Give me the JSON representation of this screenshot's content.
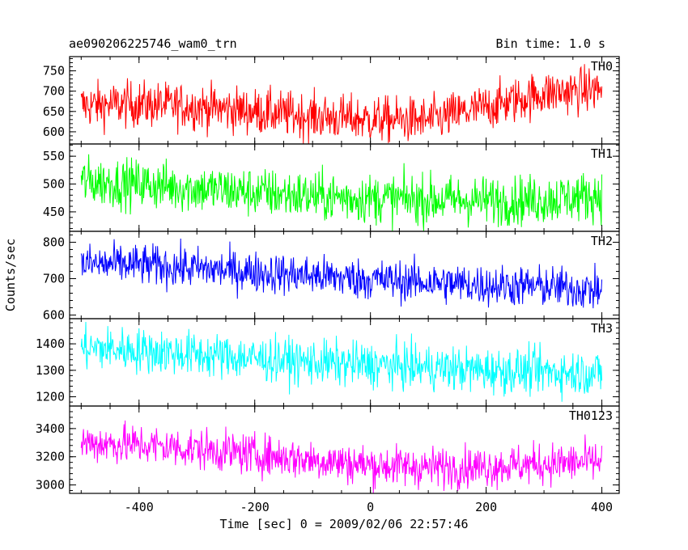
{
  "header": {
    "title": "ae090206225746_wam0_trn",
    "bin_time": "Bin time: 1.0 s"
  },
  "chart_data": {
    "type": "line",
    "title": "ae090206225746_wam0_trn",
    "xlabel": "Time [sec] 0 = 2009/02/06 22:57:46",
    "ylabel": "Counts/sec",
    "xlim": [
      -520,
      430
    ],
    "x_ticks": [
      -400,
      -200,
      0,
      200,
      400
    ],
    "x_range_data": [
      -500,
      400
    ],
    "bin_time_s": 1.0,
    "grid": false,
    "panels": [
      {
        "name": "TH0",
        "color": "#ff0000",
        "ylim": [
          570,
          785
        ],
        "y_ticks": [
          600,
          650,
          700,
          750
        ],
        "trend": [
          [
            -500,
            665
          ],
          [
            -400,
            668
          ],
          [
            -300,
            662
          ],
          [
            -200,
            650
          ],
          [
            -100,
            638
          ],
          [
            0,
            630
          ],
          [
            100,
            628
          ],
          [
            200,
            660
          ],
          [
            300,
            695
          ],
          [
            400,
            705
          ]
        ],
        "noise": 28
      },
      {
        "name": "TH1",
        "color": "#00ff00",
        "ylim": [
          415,
          572
        ],
        "y_ticks": [
          450,
          500,
          550
        ],
        "trend": [
          [
            -500,
            505
          ],
          [
            -400,
            500
          ],
          [
            -300,
            492
          ],
          [
            -200,
            485
          ],
          [
            -100,
            478
          ],
          [
            0,
            474
          ],
          [
            100,
            472
          ],
          [
            200,
            470
          ],
          [
            300,
            472
          ],
          [
            400,
            480
          ]
        ],
        "noise": 22
      },
      {
        "name": "TH2",
        "color": "#0000ff",
        "ylim": [
          590,
          830
        ],
        "y_ticks": [
          600,
          700,
          800
        ],
        "trend": [
          [
            -500,
            740
          ],
          [
            -400,
            738
          ],
          [
            -300,
            728
          ],
          [
            -200,
            718
          ],
          [
            -100,
            708
          ],
          [
            0,
            698
          ],
          [
            100,
            690
          ],
          [
            200,
            682
          ],
          [
            300,
            678
          ],
          [
            400,
            668
          ]
        ],
        "noise": 28
      },
      {
        "name": "TH3",
        "color": "#00ffff",
        "ylim": [
          1165,
          1495
        ],
        "y_ticks": [
          1200,
          1300,
          1400
        ],
        "trend": [
          [
            -500,
            1385
          ],
          [
            -400,
            1375
          ],
          [
            -300,
            1360
          ],
          [
            -200,
            1345
          ],
          [
            -100,
            1330
          ],
          [
            0,
            1320
          ],
          [
            100,
            1310
          ],
          [
            200,
            1300
          ],
          [
            300,
            1295
          ],
          [
            400,
            1290
          ]
        ],
        "noise": 42
      },
      {
        "name": "TH0123",
        "color": "#ff00ff",
        "ylim": [
          2940,
          3560
        ],
        "y_ticks": [
          3000,
          3200,
          3400
        ],
        "trend": [
          [
            -500,
            3300
          ],
          [
            -400,
            3285
          ],
          [
            -300,
            3255
          ],
          [
            -200,
            3215
          ],
          [
            -100,
            3180
          ],
          [
            0,
            3140
          ],
          [
            100,
            3125
          ],
          [
            200,
            3130
          ],
          [
            300,
            3150
          ],
          [
            400,
            3165
          ]
        ],
        "noise": 72
      }
    ]
  }
}
